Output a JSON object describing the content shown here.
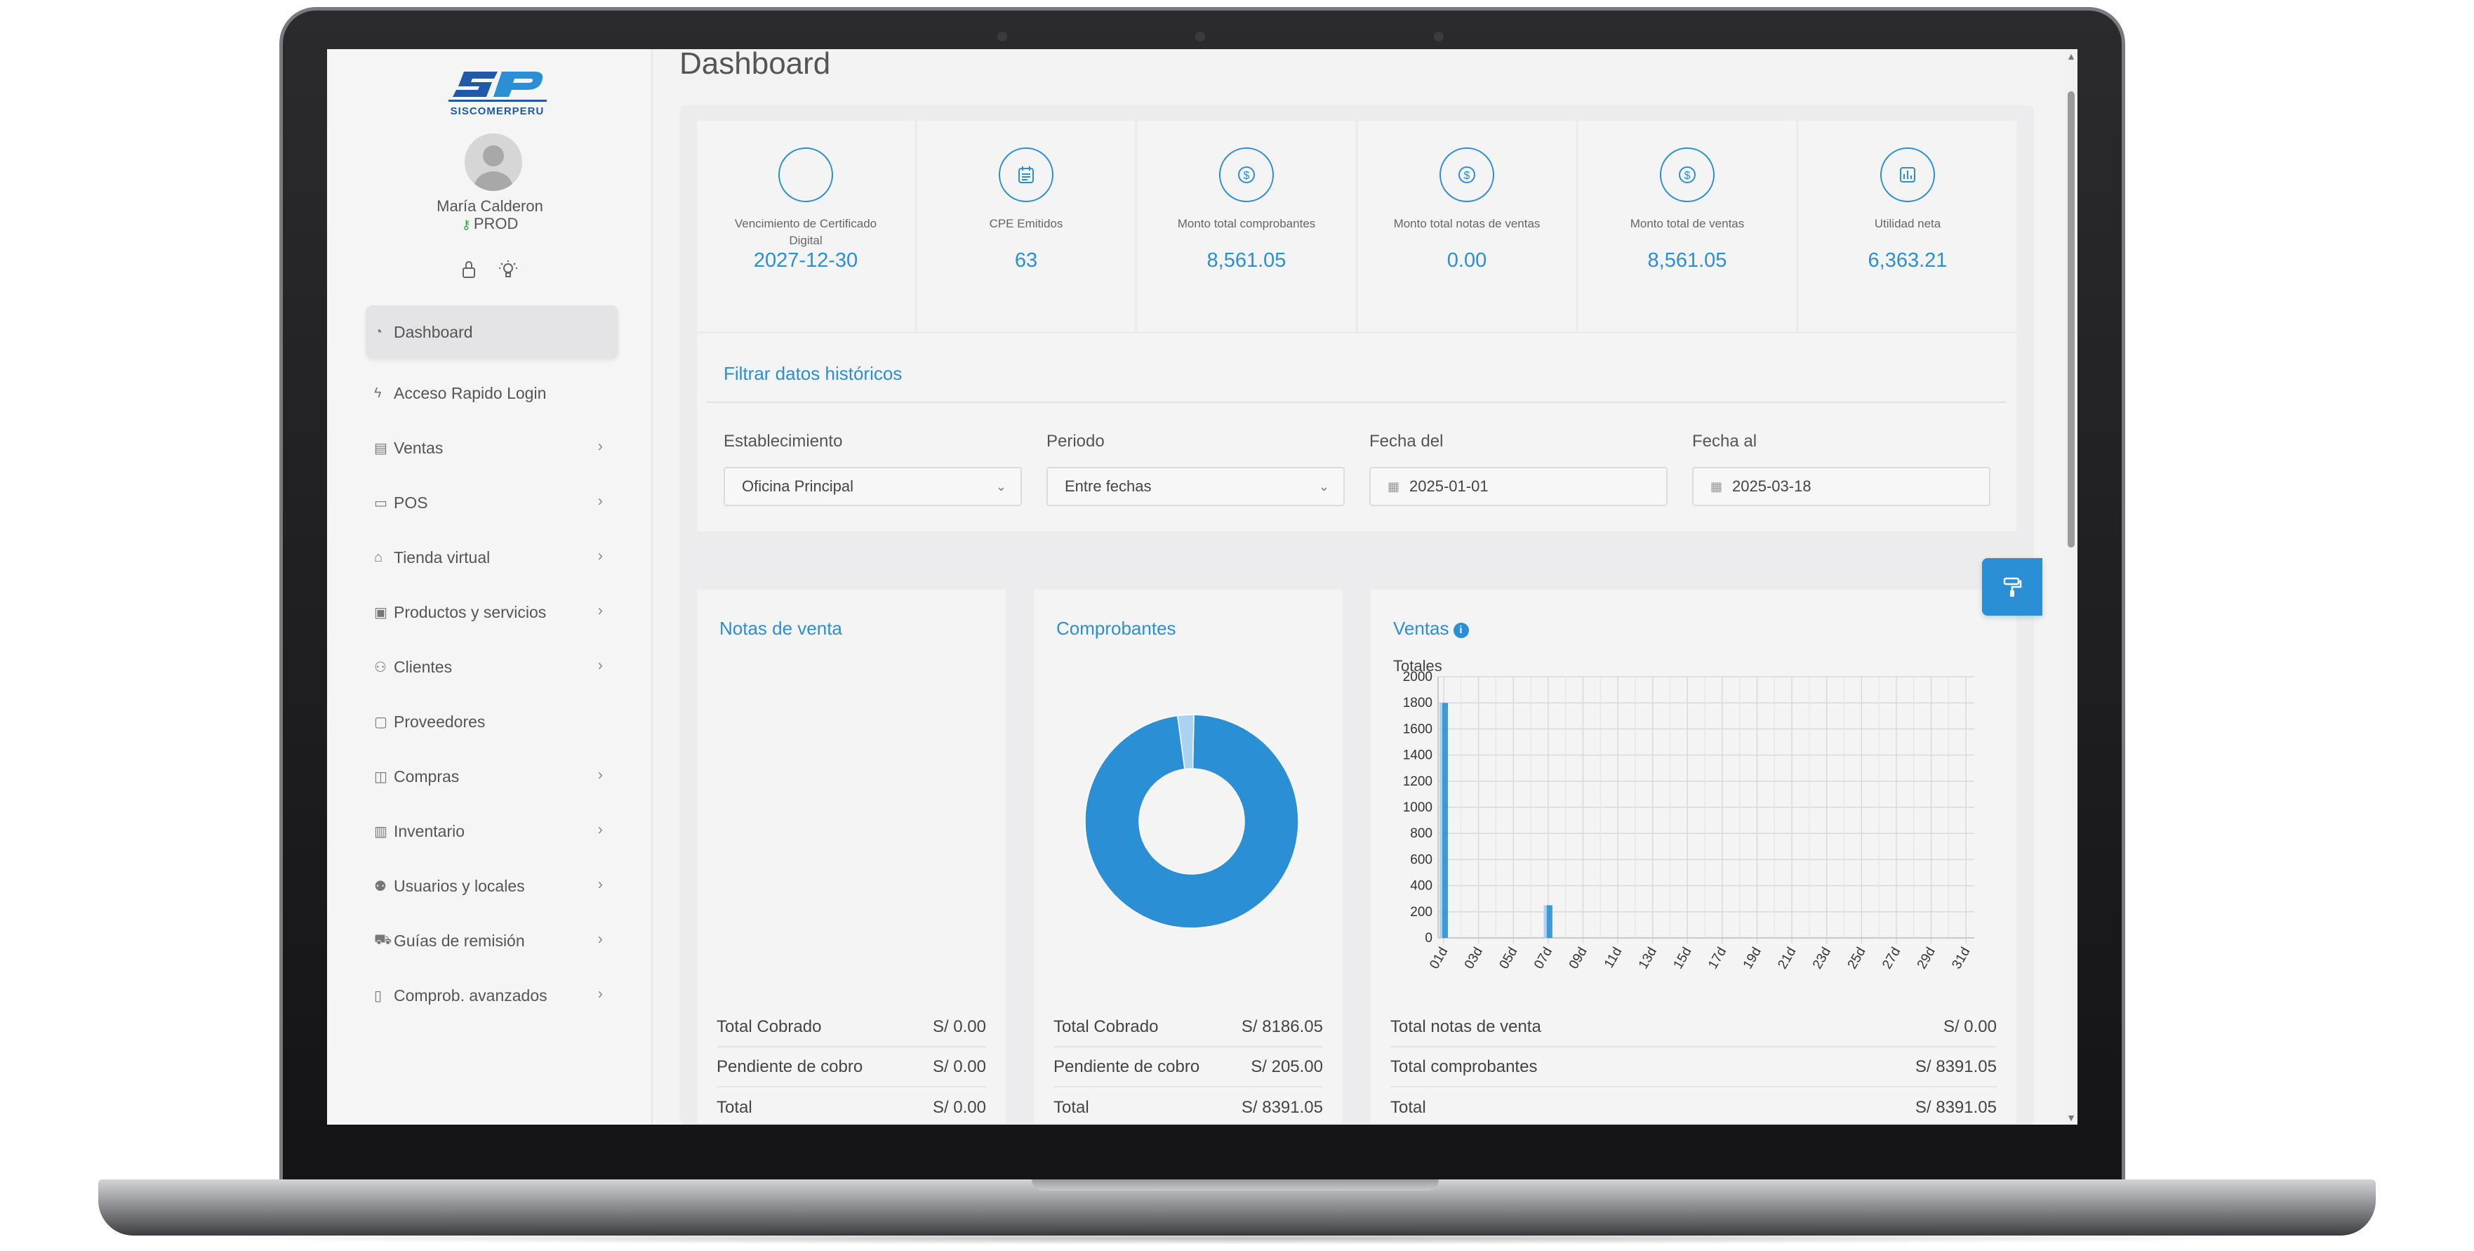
{
  "brand": {
    "logo_text": "SISCOMERPERU",
    "logo_icon": "sp-logo"
  },
  "user": {
    "name": "María Calderon",
    "environment": "PROD",
    "env_icon": "key-icon"
  },
  "quick_icons": [
    "lock-icon",
    "lightbulb-icon"
  ],
  "sidebar": {
    "items": [
      {
        "label": "Dashboard",
        "icon": "dashboard-gauge-icon",
        "active": true,
        "has_submenu": false
      },
      {
        "label": "Acceso Rapido Login",
        "icon": "lightning-icon",
        "active": false,
        "has_submenu": false
      },
      {
        "label": "Ventas",
        "icon": "receipt-icon",
        "active": false,
        "has_submenu": true
      },
      {
        "label": "POS",
        "icon": "monitor-icon",
        "active": false,
        "has_submenu": true
      },
      {
        "label": "Tienda virtual",
        "icon": "store-icon",
        "active": false,
        "has_submenu": true
      },
      {
        "label": "Productos y servicios",
        "icon": "box-icon",
        "active": false,
        "has_submenu": true
      },
      {
        "label": "Clientes",
        "icon": "users-icon",
        "active": false,
        "has_submenu": true
      },
      {
        "label": "Proveedores",
        "icon": "briefcase-icon",
        "active": false,
        "has_submenu": false
      },
      {
        "label": "Compras",
        "icon": "bag-icon",
        "active": false,
        "has_submenu": true
      },
      {
        "label": "Inventario",
        "icon": "book-icon",
        "active": false,
        "has_submenu": true
      },
      {
        "label": "Usuarios y locales",
        "icon": "people-icon",
        "active": false,
        "has_submenu": true
      },
      {
        "label": "Guías de remisión",
        "icon": "truck-icon",
        "active": false,
        "has_submenu": true
      },
      {
        "label": "Comprob. avanzados",
        "icon": "file-icon",
        "active": false,
        "has_submenu": true
      }
    ]
  },
  "page": {
    "title": "Dashboard"
  },
  "stats": [
    {
      "label": "Vencimiento de Certificado Digital",
      "value": "2027-12-30",
      "icon": "empty-circle-icon"
    },
    {
      "label": "CPE Emitidos",
      "value": "63",
      "icon": "calendar-list-icon"
    },
    {
      "label": "Monto total comprobantes",
      "value": "8,561.05",
      "icon": "dollar-coin-icon"
    },
    {
      "label": "Monto total notas de ventas",
      "value": "0.00",
      "icon": "dollar-coin-icon"
    },
    {
      "label": "Monto total de ventas",
      "value": "8,561.05",
      "icon": "dollar-coin-icon"
    },
    {
      "label": "Utilidad neta",
      "value": "6,363.21",
      "icon": "bar-chart-icon"
    }
  ],
  "filter": {
    "title": "Filtrar datos históricos",
    "establecimiento": {
      "label": "Establecimiento",
      "value": "Oficina Principal"
    },
    "periodo": {
      "label": "Periodo",
      "value": "Entre fechas"
    },
    "fecha_del": {
      "label": "Fecha del",
      "value": "2025-01-01"
    },
    "fecha_al": {
      "label": "Fecha al",
      "value": "2025-03-18"
    }
  },
  "notas_venta": {
    "title": "Notas de venta",
    "rows": [
      {
        "label": "Total Cobrado",
        "value": "S/ 0.00"
      },
      {
        "label": "Pendiente de cobro",
        "value": "S/ 0.00"
      },
      {
        "label": "Total",
        "value": "S/ 0.00"
      }
    ]
  },
  "comprobantes": {
    "title": "Comprobantes",
    "rows": [
      {
        "label": "Total Cobrado",
        "value": "S/ 8186.05"
      },
      {
        "label": "Pendiente de cobro",
        "value": "S/ 205.00"
      },
      {
        "label": "Total",
        "value": "S/ 8391.05"
      }
    ]
  },
  "ventas": {
    "title": "Ventas",
    "rows": [
      {
        "label": "Total notas de venta",
        "value": "S/ 0.00"
      },
      {
        "label": "Total comprobantes",
        "value": "S/ 8391.05"
      },
      {
        "label": "Total",
        "value": "S/ 8391.05"
      }
    ]
  },
  "colors": {
    "accent": "#2a8fd4",
    "donut_primary": "#2a8fd4",
    "donut_secondary": "#a9d3f0"
  },
  "chart_data": [
    {
      "type": "pie",
      "variant": "donut",
      "title": "Comprobantes",
      "categories": [
        "Total Cobrado",
        "Pendiente de cobro"
      ],
      "values": [
        8186.05,
        205.0
      ]
    },
    {
      "type": "bar",
      "title": "Totales",
      "categories": [
        "01d",
        "02d",
        "03d",
        "04d",
        "05d",
        "06d",
        "07d",
        "08d",
        "09d",
        "10d",
        "11d",
        "12d",
        "13d",
        "14d",
        "15d",
        "16d",
        "17d",
        "18d",
        "19d",
        "20d",
        "21d",
        "22d",
        "23d",
        "24d",
        "25d",
        "26d",
        "27d",
        "28d",
        "29d",
        "30d",
        "31d"
      ],
      "tick_labels": [
        "01d",
        "03d",
        "05d",
        "07d",
        "09d",
        "11d",
        "13d",
        "15d",
        "17d",
        "19d",
        "21d",
        "23d",
        "25d",
        "27d",
        "29d",
        "31d"
      ],
      "values": [
        1800,
        0,
        0,
        0,
        0,
        0,
        250,
        0,
        0,
        0,
        0,
        0,
        0,
        0,
        0,
        0,
        0,
        0,
        0,
        0,
        0,
        0,
        0,
        0,
        0,
        0,
        0,
        0,
        0,
        0,
        0
      ],
      "ylim": [
        0,
        2000
      ],
      "yticks": [
        0,
        200,
        400,
        600,
        800,
        1000,
        1200,
        1400,
        1600,
        1800,
        2000
      ],
      "grid": true
    }
  ]
}
